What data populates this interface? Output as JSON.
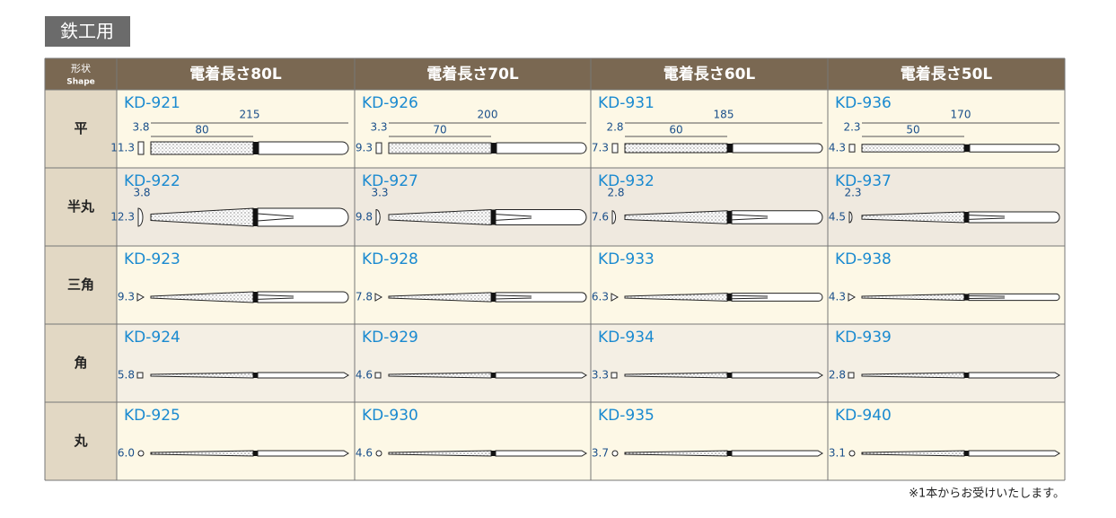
{
  "badge": "鉄工用",
  "table": {
    "header": {
      "shape": "形状",
      "shape_en": "Shape",
      "columns": [
        "電着長さ80L",
        "電着長さ70L",
        "電着長さ60L",
        "電着長さ50L"
      ]
    },
    "rows": [
      {
        "label": "平",
        "cells": [
          {
            "code": "KD-921",
            "total": "215",
            "coated": "80",
            "thickness": "3.8",
            "width": "11.3"
          },
          {
            "code": "KD-926",
            "total": "200",
            "coated": "70",
            "thickness": "3.3",
            "width": "9.3"
          },
          {
            "code": "KD-931",
            "total": "185",
            "coated": "60",
            "thickness": "2.8",
            "width": "7.3"
          },
          {
            "code": "KD-936",
            "total": "170",
            "coated": "50",
            "thickness": "2.3",
            "width": "4.3"
          }
        ]
      },
      {
        "label": "半丸",
        "cells": [
          {
            "code": "KD-922",
            "thickness": "3.8",
            "width": "12.3"
          },
          {
            "code": "KD-927",
            "thickness": "3.3",
            "width": "9.8"
          },
          {
            "code": "KD-932",
            "thickness": "2.8",
            "width": "7.6"
          },
          {
            "code": "KD-937",
            "thickness": "2.3",
            "width": "4.5"
          }
        ]
      },
      {
        "label": "三角",
        "cells": [
          {
            "code": "KD-923",
            "width": "9.3"
          },
          {
            "code": "KD-928",
            "width": "7.8"
          },
          {
            "code": "KD-933",
            "width": "6.3"
          },
          {
            "code": "KD-938",
            "width": "4.3"
          }
        ]
      },
      {
        "label": "角",
        "cells": [
          {
            "code": "KD-924",
            "width": "5.8"
          },
          {
            "code": "KD-929",
            "width": "4.6"
          },
          {
            "code": "KD-934",
            "width": "3.3"
          },
          {
            "code": "KD-939",
            "width": "2.8"
          }
        ]
      },
      {
        "label": "丸",
        "cells": [
          {
            "code": "KD-925",
            "width": "6.0"
          },
          {
            "code": "KD-930",
            "width": "4.6"
          },
          {
            "code": "KD-935",
            "width": "3.7"
          },
          {
            "code": "KD-940",
            "width": "3.1"
          }
        ]
      }
    ]
  },
  "footnote": "※1本からお受けいたします。"
}
